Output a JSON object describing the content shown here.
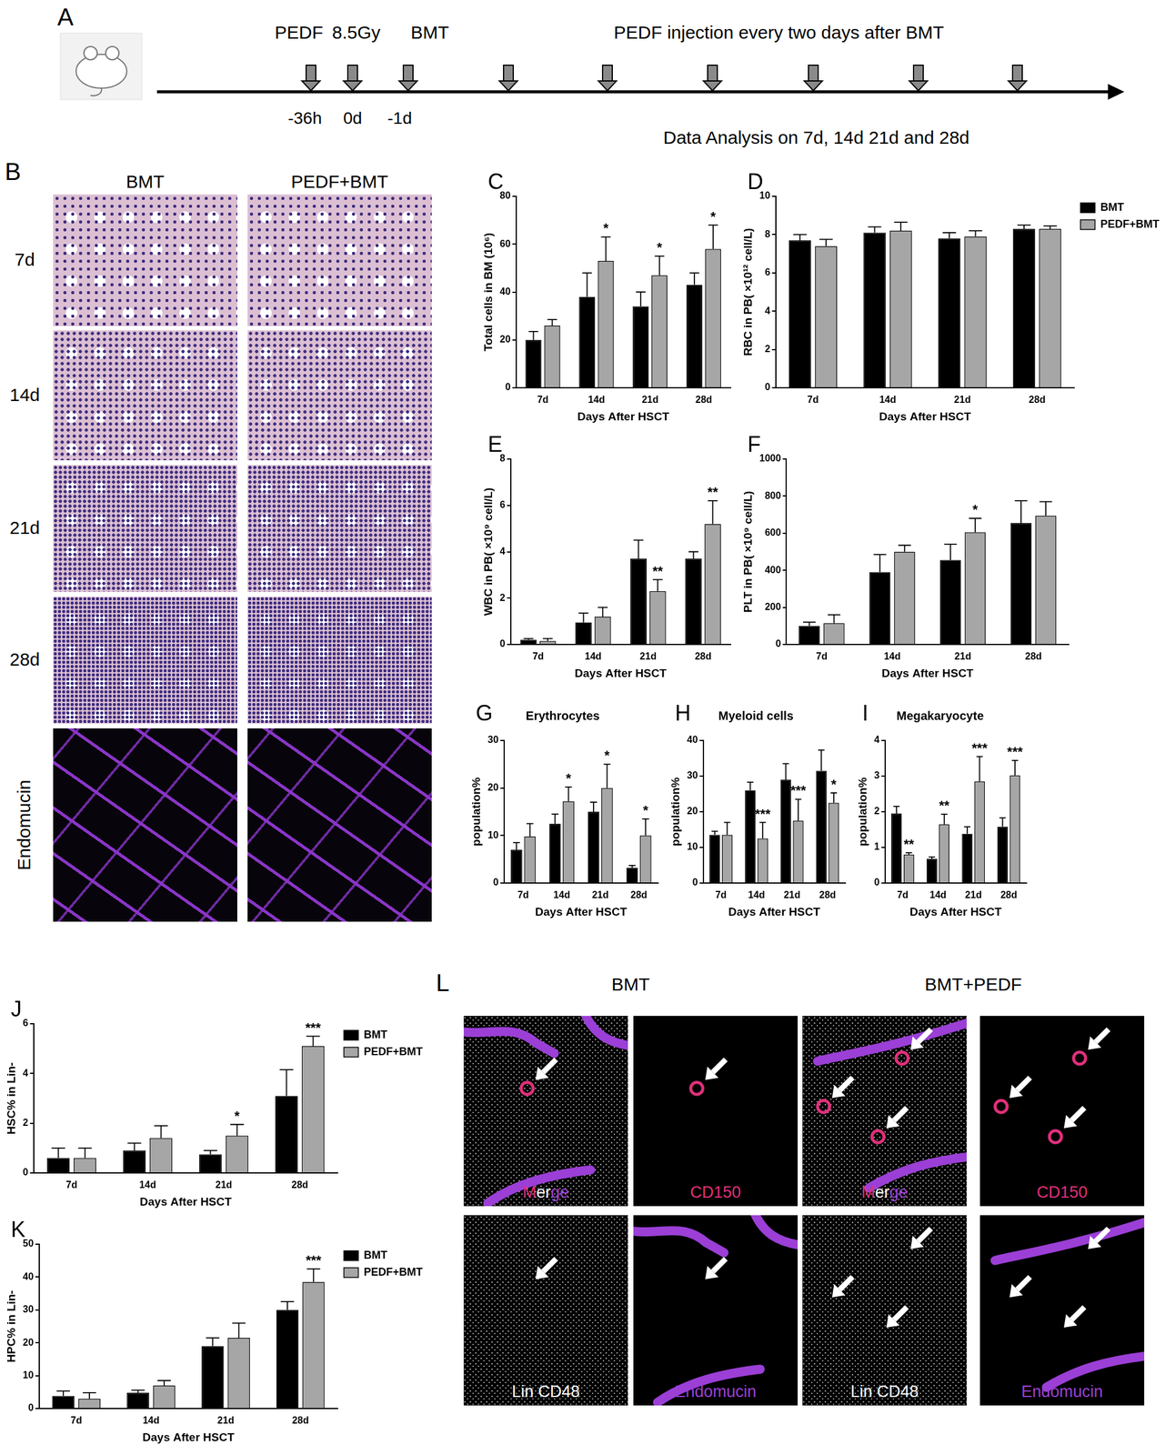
{
  "panels": [
    {
      "label": "A",
      "marks_above": [
        "PEDF",
        "8.5Gy",
        "BMT"
      ],
      "repeat_label": "PEDF injection every two days after BMT",
      "marks_below": [
        "-36h",
        "0d",
        "-1d"
      ],
      "analysis": "Data Analysis on 7d, 14d 21d and 28d"
    },
    {
      "label": "B",
      "columns": [
        "BMT",
        "PEDF+BMT"
      ],
      "rows": [
        "7d",
        "14d",
        "21d",
        "28d",
        "Endomucin"
      ]
    },
    {
      "label": "L",
      "columns": [
        "BMT",
        "BMT+PEDF"
      ],
      "channels": [
        "Merge",
        "CD150",
        "Lin CD48",
        "Endomucin"
      ]
    }
  ],
  "chart_data": [
    {
      "panel": "C",
      "type": "bar",
      "y_label": "Total cells in BM (10⁶)",
      "x_label": "Days After HSCT",
      "categories": [
        "7d",
        "14d",
        "21d",
        "28d"
      ],
      "series": [
        {
          "name": "BMT",
          "color": "#000000",
          "values": [
            20,
            38,
            34,
            43
          ],
          "errors": [
            3.5,
            10,
            6,
            5
          ]
        },
        {
          "name": "PEDF+BMT",
          "color": "#a6a6a6",
          "values": [
            26,
            53,
            47,
            58
          ],
          "errors": [
            2.5,
            10,
            8,
            10
          ]
        }
      ],
      "significance": [
        null,
        "*",
        "*",
        "*"
      ],
      "ylim": [
        0,
        80
      ],
      "yticks": [
        0,
        20,
        40,
        60,
        80
      ],
      "grid": false
    },
    {
      "panel": "D",
      "type": "bar",
      "y_label": "RBC in PB( ×10¹² cell/L)",
      "x_label": "Days After HSCT",
      "categories": [
        "7d",
        "14d",
        "21d",
        "28d"
      ],
      "series": [
        {
          "name": "BMT",
          "color": "#000000",
          "values": [
            7.7,
            8.1,
            7.8,
            8.3
          ],
          "errors": [
            0.3,
            0.3,
            0.3,
            0.2
          ]
        },
        {
          "name": "PEDF+BMT",
          "color": "#a6a6a6",
          "values": [
            7.4,
            8.2,
            7.9,
            8.3
          ],
          "errors": [
            0.35,
            0.45,
            0.3,
            0.15
          ]
        }
      ],
      "significance": [
        null,
        null,
        null,
        null
      ],
      "ylim": [
        0,
        10
      ],
      "yticks": [
        0,
        2,
        4,
        6,
        8,
        10
      ],
      "grid": false,
      "legend": "right"
    },
    {
      "panel": "E",
      "type": "bar",
      "y_label": "WBC in PB( ×10⁹ cell/L)",
      "x_label": "Days After HSCT",
      "categories": [
        "7d",
        "14d",
        "21d",
        "28d"
      ],
      "series": [
        {
          "name": "BMT",
          "color": "#000000",
          "values": [
            0.2,
            0.95,
            3.7,
            3.7
          ],
          "errors": [
            0.05,
            0.4,
            0.8,
            0.3
          ]
        },
        {
          "name": "PEDF+BMT",
          "color": "#a6a6a6",
          "values": [
            0.15,
            1.2,
            2.3,
            5.2
          ],
          "errors": [
            0.1,
            0.4,
            0.5,
            1.0
          ]
        }
      ],
      "significance": [
        null,
        null,
        "**",
        "**"
      ],
      "ylim": [
        0,
        8
      ],
      "yticks": [
        0,
        2,
        4,
        6,
        8
      ],
      "grid": false
    },
    {
      "panel": "F",
      "type": "bar",
      "y_label": "PLT in PB( ×10⁹ cell/L)",
      "x_label": "Days After HSCT",
      "categories": [
        "7d",
        "14d",
        "21d",
        "28d"
      ],
      "series": [
        {
          "name": "BMT",
          "color": "#000000",
          "values": [
            100,
            390,
            455,
            655
          ],
          "errors": [
            20,
            95,
            85,
            120
          ]
        },
        {
          "name": "PEDF+BMT",
          "color": "#a6a6a6",
          "values": [
            115,
            500,
            605,
            695
          ],
          "errors": [
            45,
            35,
            75,
            75
          ]
        }
      ],
      "significance": [
        null,
        null,
        "*",
        null
      ],
      "ylim": [
        0,
        1000
      ],
      "yticks": [
        0,
        200,
        400,
        600,
        800,
        1000
      ],
      "grid": false
    },
    {
      "panel": "G",
      "type": "bar",
      "title": "Erythrocytes",
      "y_label": "population%",
      "x_label": "Days After HSCT",
      "categories": [
        "7d",
        "14d",
        "21d",
        "28d"
      ],
      "series": [
        {
          "name": "BMT",
          "color": "#000000",
          "values": [
            7,
            12.5,
            15,
            3.2
          ],
          "errors": [
            1.5,
            2,
            2,
            0.5
          ]
        },
        {
          "name": "PEDF+BMT",
          "color": "#a6a6a6",
          "values": [
            9.8,
            17.2,
            20,
            10
          ],
          "errors": [
            2.7,
            3,
            5,
            3.5
          ]
        }
      ],
      "significance": [
        null,
        "*",
        "*",
        "*"
      ],
      "ylim": [
        0,
        30
      ],
      "yticks": [
        0,
        10,
        20,
        30
      ],
      "grid": false
    },
    {
      "panel": "H",
      "type": "bar",
      "title": "Myeloid cells",
      "y_label": "population%",
      "x_label": "Days After HSCT",
      "categories": [
        "7d",
        "14d",
        "21d",
        "28d"
      ],
      "series": [
        {
          "name": "BMT",
          "color": "#000000",
          "values": [
            13.5,
            26,
            29,
            31.5
          ],
          "errors": [
            1,
            2.3,
            4.5,
            5.8
          ]
        },
        {
          "name": "PEDF+BMT",
          "color": "#a6a6a6",
          "values": [
            13.5,
            12.5,
            17.5,
            22.5
          ],
          "errors": [
            3.5,
            4.5,
            6,
            2.8
          ]
        }
      ],
      "significance": [
        null,
        "***",
        "***",
        "*"
      ],
      "ylim": [
        0,
        40
      ],
      "yticks": [
        0,
        10,
        20,
        30,
        40
      ],
      "grid": false
    },
    {
      "panel": "I",
      "type": "bar",
      "title": "Megakaryocyte",
      "y_label": "population%",
      "x_label": "Days After HSCT",
      "categories": [
        "7d",
        "14d",
        "21d",
        "28d"
      ],
      "series": [
        {
          "name": "BMT",
          "color": "#000000",
          "values": [
            1.95,
            0.68,
            1.38,
            1.58
          ],
          "errors": [
            0.2,
            0.05,
            0.2,
            0.25
          ]
        },
        {
          "name": "PEDF+BMT",
          "color": "#a6a6a6",
          "values": [
            0.8,
            1.65,
            2.85,
            3.02
          ],
          "errors": [
            0.05,
            0.28,
            0.7,
            0.42
          ]
        }
      ],
      "significance": [
        "**",
        "**",
        "***",
        "***"
      ],
      "ylim": [
        0,
        4
      ],
      "yticks": [
        0,
        1,
        2,
        3,
        4
      ],
      "grid": false
    },
    {
      "panel": "J",
      "type": "bar",
      "y_label": "HSC% in Lin-",
      "x_label": "Days After HSCT",
      "categories": [
        "7d",
        "14d",
        "21d",
        "28d"
      ],
      "series": [
        {
          "name": "BMT",
          "color": "#000000",
          "values": [
            0.6,
            0.9,
            0.75,
            3.1
          ],
          "errors": [
            0.4,
            0.3,
            0.15,
            1.05
          ]
        },
        {
          "name": "PEDF+BMT",
          "color": "#a6a6a6",
          "values": [
            0.6,
            1.4,
            1.5,
            5.1
          ],
          "errors": [
            0.4,
            0.5,
            0.45,
            0.4
          ]
        }
      ],
      "significance": [
        null,
        null,
        "*",
        "***"
      ],
      "ylim": [
        0,
        6
      ],
      "yticks": [
        0,
        2,
        4,
        6
      ],
      "grid": false,
      "legend": "right"
    },
    {
      "panel": "K",
      "type": "bar",
      "y_label": "HPC% in Lin-",
      "x_label": "Days After HSCT",
      "categories": [
        "7d",
        "14d",
        "21d",
        "28d"
      ],
      "series": [
        {
          "name": "BMT",
          "color": "#000000",
          "values": [
            3.8,
            4.8,
            19,
            30
          ],
          "errors": [
            1.5,
            0.8,
            2.5,
            2.5
          ]
        },
        {
          "name": "PEDF+BMT",
          "color": "#a6a6a6",
          "values": [
            3,
            7,
            21.5,
            38.5
          ],
          "errors": [
            1.8,
            1.5,
            4.5,
            4
          ]
        }
      ],
      "significance": [
        null,
        null,
        null,
        "***"
      ],
      "ylim": [
        0,
        50
      ],
      "yticks": [
        0,
        10,
        20,
        30,
        40,
        50
      ],
      "grid": false,
      "legend": "right"
    }
  ]
}
